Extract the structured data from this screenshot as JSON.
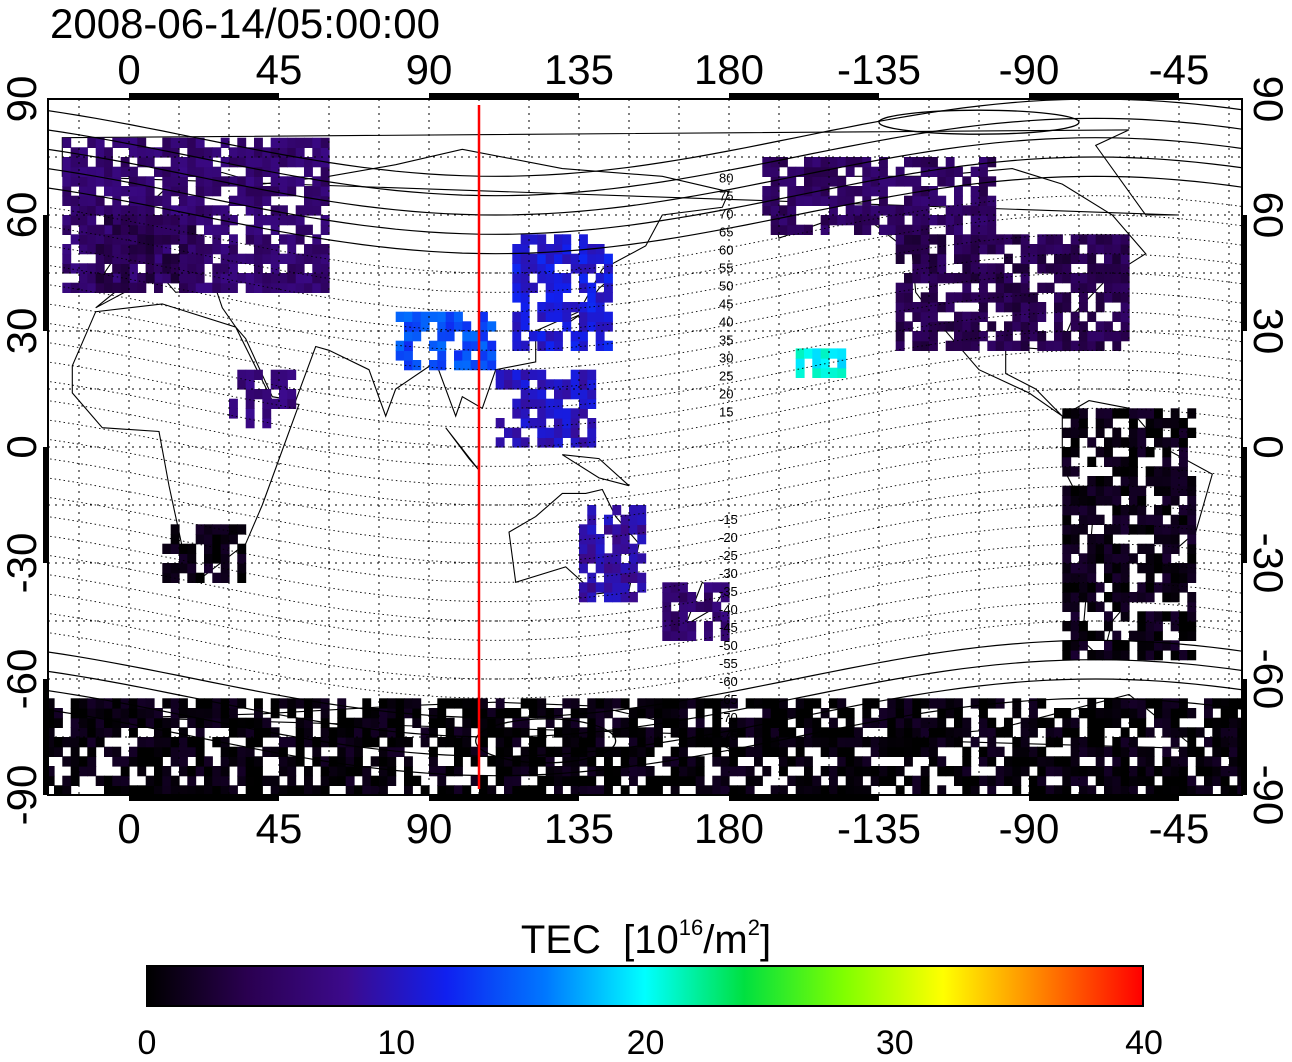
{
  "title": "2008-06-14/05:00:00",
  "map": {
    "projection": "equirectangular",
    "top_lon_labels": [
      "0",
      "45",
      "90",
      "135",
      "180",
      "-135",
      "-90",
      "-45"
    ],
    "bottom_lon_labels": [
      "0",
      "45",
      "90",
      "135",
      "180",
      "-135",
      "-90",
      "-45"
    ],
    "left_lat_labels": [
      "90",
      "60",
      "30",
      "0",
      "-30",
      "-60",
      "-90"
    ],
    "right_lat_labels": [
      "90",
      "60",
      "30",
      "0",
      "-30",
      "-60",
      "-90"
    ],
    "local_time_meridian_lon": 105,
    "meridian_color": "#ff0000",
    "magnetic_contour_labels": [
      "80",
      "75",
      "70",
      "65",
      "60",
      "55",
      "50",
      "45",
      "40",
      "35",
      "30",
      "25",
      "20",
      "15",
      "-15",
      "-20",
      "-25",
      "-30",
      "-35",
      "-40",
      "-45",
      "-50",
      "-55",
      "-60",
      "-65",
      "-70",
      "-75"
    ]
  },
  "colorbar": {
    "title_main": "TEC",
    "title_unit_prefix": "[10",
    "title_unit_exp": "16",
    "title_unit_mid": "/m",
    "title_unit_exp2": "2",
    "title_unit_suffix": "]",
    "min": 0,
    "max": 40,
    "tick_labels": [
      "0",
      "10",
      "20",
      "30",
      "40"
    ],
    "colors": [
      "#000000",
      "#2a0050",
      "#3c0a8c",
      "#1020f0",
      "#0078ff",
      "#00ffff",
      "#00e040",
      "#80ff00",
      "#ffff00",
      "#ff8000",
      "#ff0000"
    ]
  },
  "chart_data": {
    "type": "heatmap",
    "variable": "TEC",
    "units": "10^16/m^2",
    "regions": [
      {
        "lon": [
          -20,
          60
        ],
        "lat": [
          40,
          80
        ],
        "tec": 6
      },
      {
        "lon": [
          -10,
          20
        ],
        "lat": [
          40,
          60
        ],
        "tec": 4
      },
      {
        "lon": [
          30,
          50
        ],
        "lat": [
          5,
          20
        ],
        "tec": 7
      },
      {
        "lon": [
          80,
          110
        ],
        "lat": [
          20,
          35
        ],
        "tec": 14
      },
      {
        "lon": [
          115,
          145
        ],
        "lat": [
          25,
          55
        ],
        "tec": 11
      },
      {
        "lon": [
          110,
          140
        ],
        "lat": [
          0,
          20
        ],
        "tec": 10
      },
      {
        "lon": [
          160,
          180
        ],
        "lat": [
          -50,
          -35
        ],
        "tec": 6
      },
      {
        "lon": [
          135,
          155
        ],
        "lat": [
          -40,
          -15
        ],
        "tec": 9
      },
      {
        "lon": [
          -160,
          -145
        ],
        "lat": [
          18,
          24
        ],
        "tec": 20
      },
      {
        "lon": [
          -130,
          -60
        ],
        "lat": [
          25,
          55
        ],
        "tec": 4
      },
      {
        "lon": [
          -170,
          -100
        ],
        "lat": [
          55,
          75
        ],
        "tec": 5
      },
      {
        "lon": [
          -80,
          -40
        ],
        "lat": [
          -55,
          10
        ],
        "tec": 1
      },
      {
        "lon": [
          10,
          35
        ],
        "lat": [
          -35,
          -20
        ],
        "tec": 1
      },
      {
        "lon": [
          -180,
          180
        ],
        "lat": [
          -90,
          -65
        ],
        "tec": 0.5
      }
    ]
  }
}
